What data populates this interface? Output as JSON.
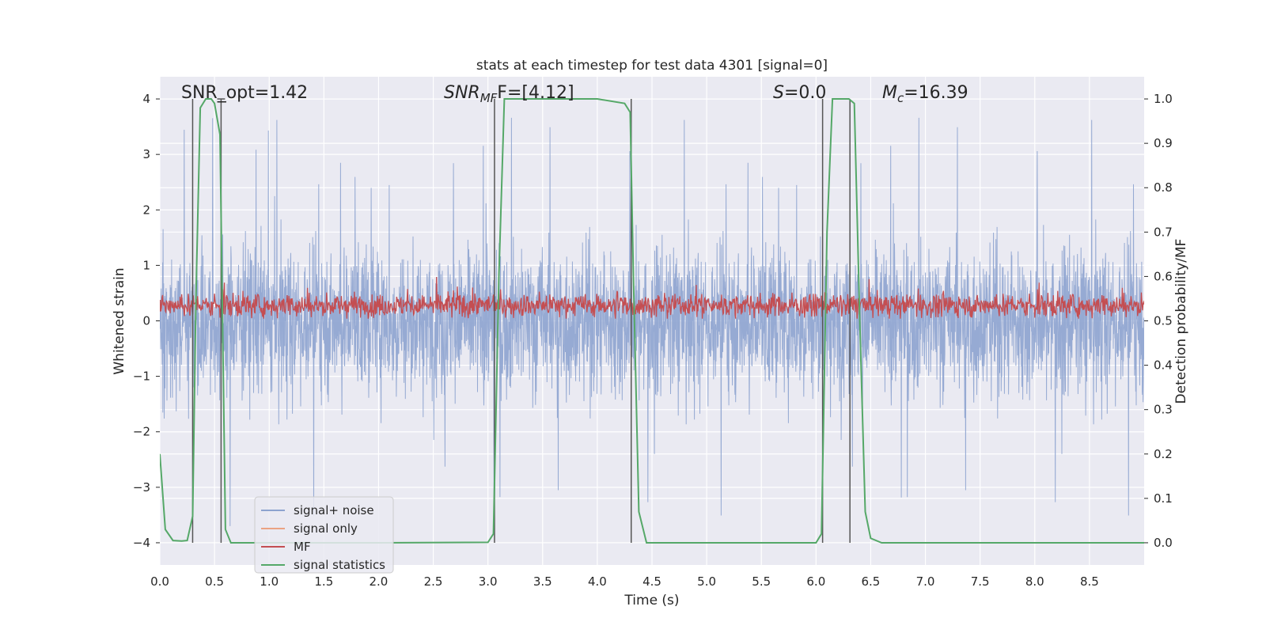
{
  "chart_data": {
    "type": "line",
    "title": "stats at each timestep for test data 4301 [signal=0]",
    "xlabel": "Time (s)",
    "ylabel_left": "Whitened strain",
    "ylabel_right": "Detection probability/MF",
    "xlim": [
      0.0,
      9.0
    ],
    "ylim_left": [
      -4.4,
      4.4
    ],
    "ylim_right": [
      -0.05,
      1.05
    ],
    "xticks": [
      "0.0",
      "0.5",
      "1.0",
      "1.5",
      "2.0",
      "2.5",
      "3.0",
      "3.5",
      "4.0",
      "4.5",
      "5.0",
      "5.5",
      "6.0",
      "6.5",
      "7.0",
      "7.5",
      "8.0",
      "8.5"
    ],
    "yticks_left": [
      "4",
      "3",
      "2",
      "1",
      "0",
      "−1",
      "−2",
      "−3",
      "−4"
    ],
    "yticks_right": [
      "1.0",
      "0.9",
      "0.8",
      "0.7",
      "0.6",
      "0.5",
      "0.4",
      "0.3",
      "0.2",
      "0.1",
      "0.0"
    ],
    "annotations": {
      "snr_opt": "SNR_opt=1.42",
      "snr_mf_sym": "SNR",
      "snr_mf_sub": "MF",
      "snr_mf_val": "F=[4.12]",
      "s_sym": "S",
      "s_val": "=0.0",
      "mc_sym": "M",
      "mc_sub": "c",
      "mc_val": "=16.39"
    },
    "legend": {
      "position": "lower-left",
      "entries": [
        {
          "label": "signal+ noise",
          "color": "#8da3cf"
        },
        {
          "label": "signal only",
          "color": "#eba383"
        },
        {
          "label": "MF",
          "color": "#c44e52"
        },
        {
          "label": "signal statistics",
          "color": "#55a868"
        }
      ]
    },
    "series": [
      {
        "name": "signal+ noise",
        "axis": "left",
        "color": "#8da3cf",
        "note": "dense noise trace, typical envelope",
        "envelope_upper": 1.6,
        "envelope_lower": -1.5,
        "peak_max": 4.0,
        "peak_min": -3.7
      },
      {
        "name": "MF",
        "axis": "right",
        "color": "#c44e52",
        "note": "dense trace",
        "band_low": 0.5,
        "band_high": 0.6
      },
      {
        "name": "signal statistics",
        "axis": "right",
        "color": "#55a868",
        "x": [
          0.0,
          0.05,
          0.12,
          0.2,
          0.25,
          0.3,
          0.33,
          0.37,
          0.42,
          0.47,
          0.5,
          0.55,
          0.6,
          0.65,
          0.7,
          1.0,
          2.0,
          3.0,
          3.05,
          3.1,
          3.15,
          3.3,
          3.5,
          4.0,
          4.25,
          4.3,
          4.33,
          4.38,
          4.45,
          4.5,
          5.0,
          6.0,
          6.05,
          6.1,
          6.15,
          6.2,
          6.25,
          6.3,
          6.35,
          6.4,
          6.45,
          6.5,
          6.6,
          7.0,
          8.0,
          9.0
        ],
        "values": [
          0.2,
          0.03,
          0.005,
          0.004,
          0.005,
          0.06,
          0.55,
          0.98,
          1.0,
          1.0,
          0.99,
          0.92,
          0.03,
          0.0,
          0.0,
          0.0,
          0.0,
          0.001,
          0.02,
          0.6,
          1.0,
          1.0,
          1.0,
          1.0,
          0.99,
          0.97,
          0.6,
          0.07,
          0.0,
          0.0,
          0.0,
          0.0,
          0.02,
          0.7,
          1.0,
          1.0,
          1.0,
          1.0,
          0.99,
          0.5,
          0.07,
          0.01,
          0.0,
          0.0,
          0.0,
          0.0
        ]
      }
    ],
    "vertical_markers": [
      {
        "x": 0.3,
        "y_top": 1.0,
        "y_bottom": 0.0
      },
      {
        "x": 0.56,
        "y_top": 1.0,
        "y_bottom": 0.0,
        "cap": true
      },
      {
        "x": 3.06,
        "y_top": 1.0,
        "y_bottom": 0.0
      },
      {
        "x": 4.31,
        "y_top": 1.0,
        "y_bottom": 0.0
      },
      {
        "x": 6.06,
        "y_top": 1.0,
        "y_bottom": 0.0
      },
      {
        "x": 6.31,
        "y_top": 1.0,
        "y_bottom": 0.0
      }
    ]
  }
}
